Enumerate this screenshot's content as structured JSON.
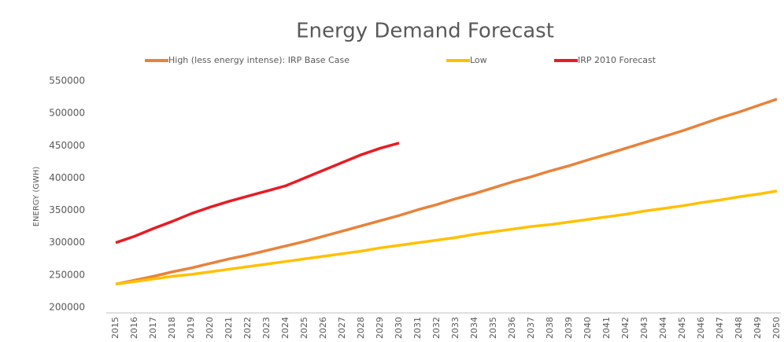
{
  "chart_data": {
    "type": "line",
    "title": "Energy Demand Forecast",
    "y_label": "ENERGY (GWH)",
    "categories": [
      "2015",
      "2016",
      "2017",
      "2018",
      "2019",
      "2020",
      "2021",
      "2022",
      "2023",
      "2024",
      "2025",
      "2026",
      "2027",
      "2028",
      "2029",
      "2030",
      "2031",
      "2032",
      "2033",
      "2034",
      "2035",
      "2036",
      "2037",
      "2038",
      "2039",
      "2040",
      "2041",
      "2042",
      "2043",
      "2044",
      "2045",
      "2046",
      "2047",
      "2048",
      "2049",
      "2050"
    ],
    "series": [
      {
        "name": "High (less energy intense): IRP Base Case",
        "color": "#e8823a",
        "values": [
          236000,
          242000,
          248000,
          255000,
          261000,
          268000,
          275000,
          281000,
          288000,
          295000,
          302000,
          310000,
          318000,
          326000,
          334000,
          342000,
          351000,
          359000,
          368000,
          376000,
          385000,
          394000,
          402000,
          411000,
          419000,
          428000,
          437000,
          446000,
          455000,
          464000,
          473000,
          483000,
          493000,
          502000,
          512000,
          522000
        ]
      },
      {
        "name": "Low",
        "color": "#ffc000",
        "values": [
          236000,
          240000,
          244000,
          248000,
          251000,
          255000,
          259000,
          263000,
          267000,
          271000,
          275000,
          279000,
          283000,
          287000,
          292000,
          296000,
          300000,
          304000,
          308000,
          313000,
          317000,
          321000,
          325000,
          328000,
          332000,
          336000,
          340000,
          344000,
          349000,
          353000,
          357000,
          362000,
          366000,
          371000,
          375000,
          380000
        ]
      },
      {
        "name": "IRP 2010 Forecast",
        "color": "#e81c23",
        "values": [
          300000,
          310000,
          322000,
          333000,
          345000,
          355000,
          364000,
          372000,
          380000,
          388000,
          400000,
          412000,
          424000,
          436000,
          446000,
          454000,
          null,
          null,
          null,
          null,
          null,
          null,
          null,
          null,
          null,
          null,
          null,
          null,
          null,
          null,
          null,
          null,
          null,
          null,
          null,
          null
        ]
      }
    ],
    "ylim": [
      200000,
      550000
    ],
    "yticks": [
      200000,
      250000,
      300000,
      350000,
      400000,
      450000,
      500000,
      550000
    ],
    "grid": false
  }
}
